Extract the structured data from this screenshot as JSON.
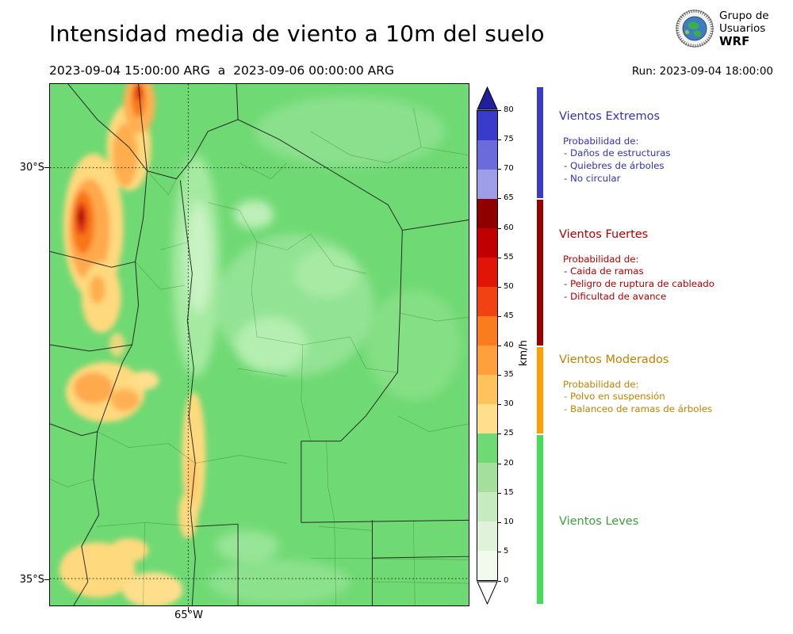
{
  "header": {
    "title": "Intensidad media de viento a 10m del suelo",
    "date_range": "2023-09-04 15:00:00 ARG  a  2023-09-06 00:00:00 ARG",
    "run_label": "Run: 2023-09-04 18:00:00",
    "logo": {
      "line1": "Grupo de",
      "line2": "Usuarios",
      "line3": "WRF"
    }
  },
  "map": {
    "lat_ticks": [
      "30°S",
      "35°S"
    ],
    "lon_ticks": [
      "65°W"
    ]
  },
  "colorbar": {
    "unit": "km/h",
    "ticks": [
      0,
      5,
      10,
      15,
      20,
      25,
      30,
      35,
      40,
      45,
      50,
      55,
      60,
      65,
      70,
      75,
      80
    ],
    "segments": [
      "#F2FAEE",
      "#E0F3DA",
      "#C7EBC0",
      "#A4DF9E",
      "#6FD973",
      "#FFDF8C",
      "#FFC35E",
      "#FFA03C",
      "#F97C1E",
      "#F04311",
      "#E01507",
      "#C00000",
      "#8F0000",
      "#9D9DE8",
      "#6B6BDC",
      "#3A3ACB"
    ],
    "over_color": "#20209F",
    "under_color": "#FFFFFF"
  },
  "legend": {
    "categories": [
      {
        "name": "Vientos Extremos",
        "color": "#3232B4",
        "strip_color": "#3A3ACC",
        "prob_label": "Probabilidad de:",
        "items": [
          "- Daños de estructuras",
          "- Quiebres de árboles",
          "- No circular"
        ]
      },
      {
        "name": "Vientos Fuertes",
        "color": "#B00000",
        "strip_color": "#990000",
        "prob_label": "Probabilidad de:",
        "items": [
          "- Caida de ramas",
          "- Peligro de ruptura de cableado",
          "- Dificultad de avance"
        ]
      },
      {
        "name": "Vientos Moderados",
        "color": "#C28100",
        "strip_color": "#FF9E00",
        "prob_label": "Probabilidad de:",
        "items": [
          "- Polvo en suspensión",
          "- Balanceo de ramas de árboles"
        ]
      },
      {
        "name": "Vientos Leves",
        "color": "#3C9E3C",
        "strip_color": "#44DC55",
        "prob_label": "",
        "items": []
      }
    ]
  }
}
